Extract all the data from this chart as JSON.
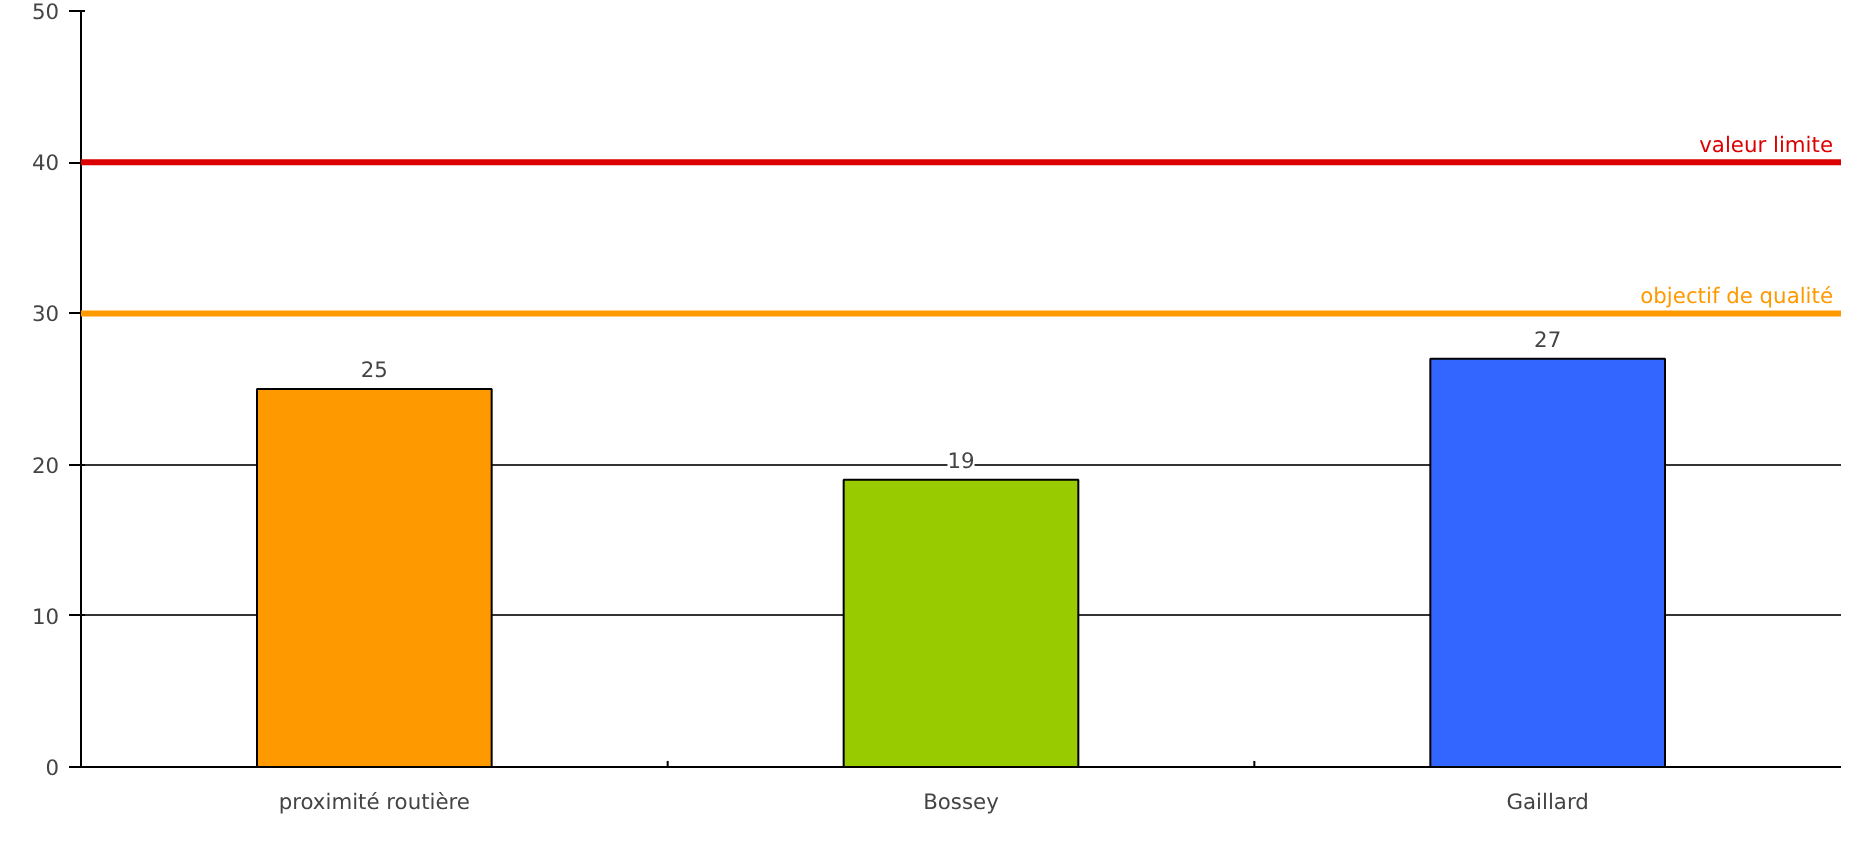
{
  "chart_data": {
    "type": "bar",
    "categories": [
      "proximité routière",
      "Bossey",
      "Gaillard"
    ],
    "values": [
      25,
      19,
      27
    ],
    "colors": [
      "#ff9900",
      "#99cc00",
      "#3366ff"
    ],
    "ylim": [
      0,
      50
    ],
    "yticks": [
      0,
      10,
      20,
      30,
      40,
      50
    ],
    "grid": "y",
    "data_labels": true,
    "ref_lines": [
      {
        "axis": "y",
        "value": 40,
        "label": "valeur limite",
        "color": "#dd0000"
      },
      {
        "axis": "y",
        "value": 30,
        "label": "objectif de qualité",
        "color": "#ff9900"
      }
    ]
  }
}
